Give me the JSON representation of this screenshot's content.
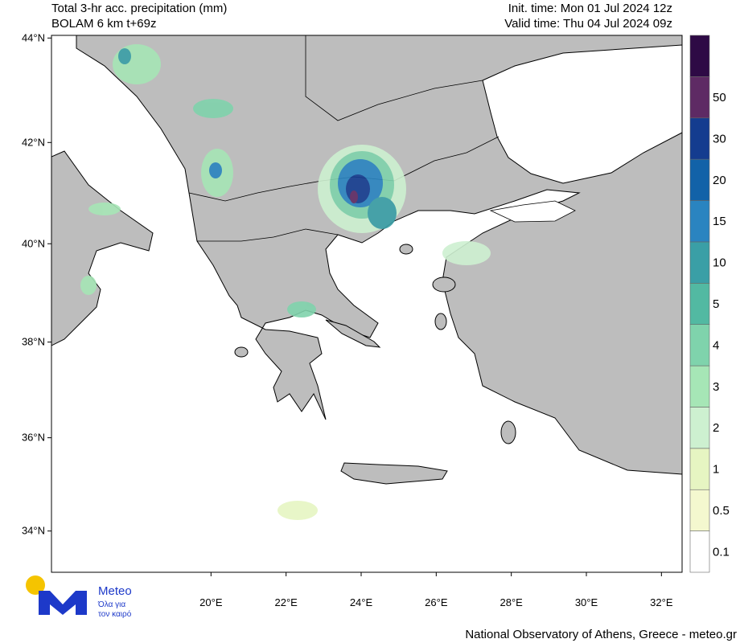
{
  "header": {
    "title_line1": "Total 3-hr acc. precipitation (mm)",
    "title_line2": "BOLAM 6 km t+69z",
    "init_time": "Init. time: Mon 01 Jul 2024 12z",
    "valid_time": "Valid time: Thu 04 Jul 2024 09z"
  },
  "map": {
    "lon_lim": [
      15.75,
      32.55
    ],
    "lat_lim": [
      33.1,
      44.05
    ],
    "lat_ticks": [
      {
        "value": 44,
        "label": "44°N"
      },
      {
        "value": 42,
        "label": "42°N"
      },
      {
        "value": 40,
        "label": "40°N"
      },
      {
        "value": 38,
        "label": "38°N"
      },
      {
        "value": 36,
        "label": "36°N"
      },
      {
        "value": 34,
        "label": "34°N"
      }
    ],
    "lon_ticks": [
      {
        "value": 20,
        "label": "20°E"
      },
      {
        "value": 22,
        "label": "22°E"
      },
      {
        "value": 24,
        "label": "24°E"
      },
      {
        "value": 26,
        "label": "26°E"
      },
      {
        "value": 28,
        "label": "28°E"
      },
      {
        "value": 30,
        "label": "30°E"
      },
      {
        "value": 32,
        "label": "32°E"
      }
    ]
  },
  "colorbar": {
    "levels": [
      0.1,
      0.5,
      1,
      2,
      3,
      4,
      5,
      10,
      15,
      20,
      30,
      50
    ],
    "colors": [
      "#ffffff",
      "#f4f8cf",
      "#e6f5c2",
      "#cdf0d0",
      "#a6e6b6",
      "#7fd3ac",
      "#52b9a2",
      "#3a9fa6",
      "#2a84c0",
      "#1262a8",
      "#143c8f",
      "#5e2a64",
      "#2e0a45"
    ]
  },
  "logo": {
    "name": "Meteo",
    "line1": "Όλα για",
    "line2": "τον καιρό"
  },
  "footer": "National Observatory of Athens, Greece - meteo.gr"
}
